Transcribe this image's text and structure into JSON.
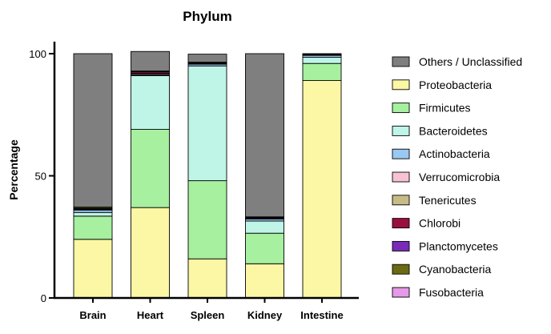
{
  "chart_data": {
    "type": "bar",
    "stacked": true,
    "title": "Phylum",
    "xlabel": "",
    "ylabel": "Percentage",
    "ylim": [
      0,
      100
    ],
    "yticks": [
      0,
      50,
      100
    ],
    "categories": [
      "Brain",
      "Heart",
      "Spleen",
      "Kidney",
      "Intestine"
    ],
    "legend_position": "right",
    "series": [
      {
        "name": "Proteobacteria",
        "color": "#fbf7a4",
        "values": [
          24,
          37,
          16,
          14,
          89
        ]
      },
      {
        "name": "Firmicutes",
        "color": "#a6f0a0",
        "values": [
          9.5,
          32,
          32,
          12.5,
          7
        ]
      },
      {
        "name": "Bacteroidetes",
        "color": "#bff5e6",
        "values": [
          1.5,
          22,
          47,
          5,
          2.5
        ]
      },
      {
        "name": "Actinobacteria",
        "color": "#99c8f2",
        "values": [
          1,
          0.4,
          0.7,
          0.8,
          0.8
        ]
      },
      {
        "name": "Verrucomicrobia",
        "color": "#f7c2d6",
        "values": [
          0.2,
          0.4,
          0.2,
          0.2,
          0.1
        ]
      },
      {
        "name": "Tenericutes",
        "color": "#c7bb86",
        "values": [
          0.2,
          0.2,
          0.1,
          0.1,
          0.1
        ]
      },
      {
        "name": "Chlorobi",
        "color": "#9b0f3f",
        "values": [
          0.1,
          0.6,
          0.1,
          0.1,
          0.1
        ]
      },
      {
        "name": "Planctomycetes",
        "color": "#7a2ab8",
        "values": [
          0.1,
          0.1,
          0.1,
          0.1,
          0.1
        ]
      },
      {
        "name": "Cyanobacteria",
        "color": "#6b6a12",
        "values": [
          0.5,
          0.1,
          0.2,
          0.3,
          0.1
        ]
      },
      {
        "name": "Fusobacteria",
        "color": "#e39ae8",
        "values": [
          0.1,
          0.1,
          0.1,
          0.1,
          0.1
        ]
      },
      {
        "name": "Others / Unclassified",
        "color": "#7f7f7f",
        "values": [
          62.8,
          8.0,
          3.3,
          66.8,
          0.1
        ]
      }
    ],
    "legend_order": [
      "Others / Unclassified",
      "Proteobacteria",
      "Firmicutes",
      "Bacteroidetes",
      "Actinobacteria",
      "Verrucomicrobia",
      "Tenericutes",
      "Chlorobi",
      "Planctomycetes",
      "Cyanobacteria",
      "Fusobacteria"
    ]
  }
}
